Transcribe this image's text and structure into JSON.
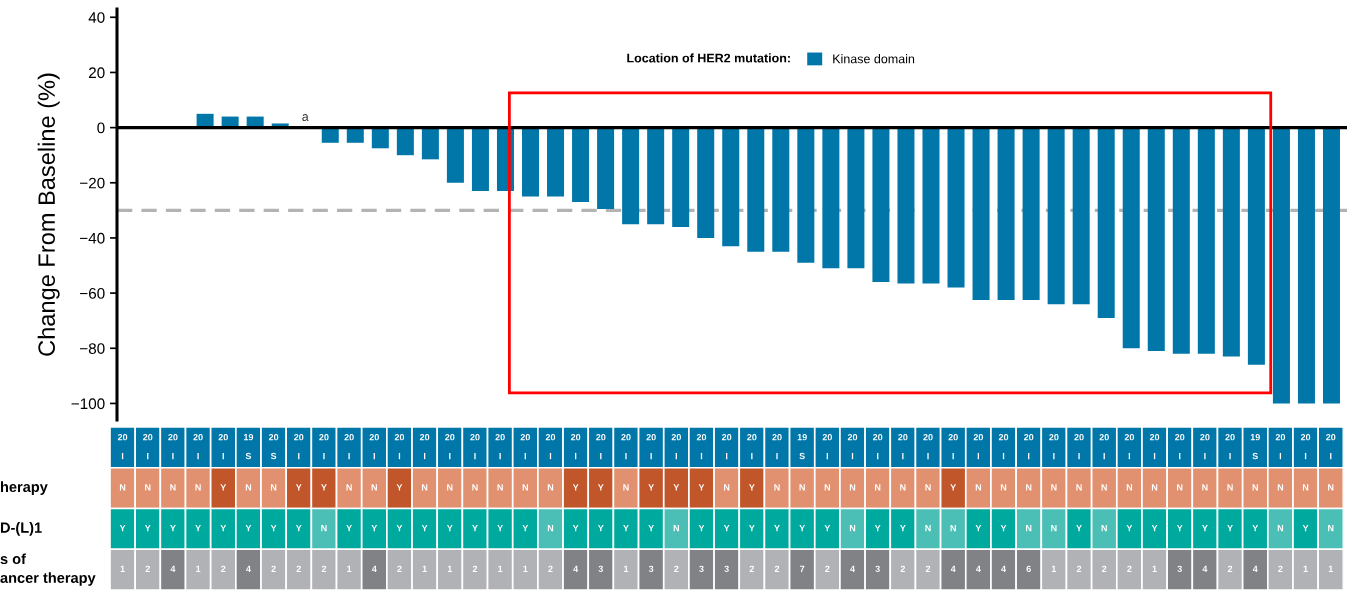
{
  "chart_data": [
    {
      "type": "bar",
      "ylabel": "Change From Baseline (%)",
      "legend_title": "Location of HER2 mutation:",
      "legend": "top",
      "categories": [
        null,
        null,
        null,
        null,
        null,
        null,
        null,
        null,
        null,
        null,
        null,
        null,
        null,
        null,
        null,
        null,
        null,
        null,
        null,
        null,
        null,
        null,
        null,
        null,
        null,
        null,
        null,
        null,
        null,
        null,
        null,
        null,
        null,
        null,
        null,
        null,
        null,
        null,
        null,
        null,
        null,
        null,
        null,
        null,
        null,
        null,
        null,
        null,
        null
      ],
      "series": [
        {
          "name": "Kinase domain",
          "color": "#0077a8",
          "values": [
            null,
            null,
            null,
            5,
            4,
            4,
            1.5,
            0,
            -5.5,
            -5.5,
            -7.5,
            -10,
            -11.5,
            -20,
            -23,
            -23,
            -25,
            -25,
            -27,
            -29.5,
            -35,
            -35,
            -36,
            -40,
            -43,
            -45,
            -45,
            -49,
            -51,
            -51,
            -56,
            -56.5,
            -56.5,
            -58,
            -62.5,
            -62.5,
            -62.5,
            -64,
            -64,
            -69,
            -80,
            -81,
            -82,
            -82,
            -83,
            -86,
            -100,
            -100,
            -100
          ],
          "value_labels": [
            null,
            null,
            null,
            null,
            null,
            null,
            null,
            "a",
            null,
            null,
            null,
            null,
            null,
            null,
            null,
            null,
            null,
            null,
            null,
            null,
            null,
            null,
            null,
            null,
            null,
            null,
            null,
            null,
            null,
            null,
            null,
            null,
            null,
            null,
            null,
            null,
            null,
            null,
            null,
            null,
            null,
            null,
            null,
            null,
            null,
            null,
            null,
            null,
            null
          ]
        }
      ],
      "ylim": [
        -106,
        43
      ],
      "yticks": [
        40,
        20,
        0,
        {
          "value": -20,
          "label": "−20"
        },
        {
          "value": -40,
          "label": "−40"
        },
        {
          "value": -60,
          "label": "−60"
        },
        {
          "value": -80,
          "label": "−80"
        },
        {
          "value": -100,
          "label": "−100"
        }
      ],
      "ref_lines": [
        {
          "axis": "y",
          "value": 0,
          "color": "#000000",
          "line_style": "solid"
        },
        {
          "axis": "y",
          "value": -30,
          "color": "#b3b3b3",
          "line_style": "dashed"
        }
      ],
      "tick_labels": "y",
      "grid": false
    },
    {
      "type": "other",
      "categories": [
        null,
        null,
        null,
        null,
        null,
        null,
        null,
        null,
        null,
        null,
        null,
        null,
        null,
        null,
        null,
        null,
        null,
        null,
        null,
        null,
        null,
        null,
        null,
        null,
        null,
        null,
        null,
        null,
        null,
        null,
        null,
        null,
        null,
        null,
        null,
        null,
        null,
        null,
        null,
        null,
        null,
        null,
        null,
        null,
        null,
        null,
        null,
        null,
        null
      ],
      "y_categories": [
        null,
        "herapy",
        "D-(L)1",
        "s of\nancer therapy"
      ],
      "cell_labels": [
        [
          "20\nI",
          "20\nI",
          "20\nI",
          "20\nI",
          "20\nI",
          "19\nS",
          "20\nS",
          "20\nI",
          "20\nI",
          "20\nI",
          "20\nI",
          "20\nI",
          "20\nI",
          "20\nI",
          "20\nI",
          "20\nI",
          "20\nI",
          "20\nI",
          "20\nI",
          "20\nI",
          "20\nI",
          "20\nI",
          "20\nI",
          "20\nI",
          "20\nI",
          "20\nI",
          "20\nI",
          "19\nS",
          "20\nI",
          "20\nI",
          "20\nI",
          "20\nI",
          "20\nI",
          "20\nI",
          "20\nI",
          "20\nI",
          "20\nI",
          "20\nI",
          "20\nI",
          "20\nI",
          "20\nI",
          "20\nI",
          "20\nI",
          "20\nI",
          "20\nI",
          "19\nS",
          "20\nI",
          "20\nI",
          "20\nI"
        ],
        [
          "N",
          "N",
          "N",
          "N",
          "Y",
          "N",
          "N",
          "Y",
          "Y",
          "N",
          "N",
          "Y",
          "N",
          "N",
          "N",
          "N",
          "N",
          "N",
          "Y",
          "Y",
          "N",
          "Y",
          "Y",
          "Y",
          "N",
          "Y",
          "N",
          "N",
          "N",
          "N",
          "N",
          "N",
          "N",
          "Y",
          "N",
          "N",
          "N",
          "N",
          "N",
          "N",
          "N",
          "N",
          "N",
          "N",
          "N",
          "N",
          "N",
          "N",
          "N"
        ],
        [
          "Y",
          "Y",
          "Y",
          "Y",
          "Y",
          "Y",
          "Y",
          "Y",
          "N",
          "Y",
          "Y",
          "Y",
          "Y",
          "Y",
          "Y",
          "Y",
          "Y",
          "N",
          "Y",
          "Y",
          "Y",
          "Y",
          "N",
          "Y",
          "Y",
          "Y",
          "Y",
          "Y",
          "Y",
          "N",
          "Y",
          "Y",
          "N",
          "N",
          "Y",
          "Y",
          "N",
          "N",
          "Y",
          "N",
          "Y",
          "Y",
          "Y",
          "Y",
          "Y",
          "Y",
          "N",
          "Y",
          "N"
        ],
        [
          "1",
          "2",
          "4",
          "1",
          "2",
          "4",
          "2",
          "2",
          "2",
          "1",
          "4",
          "2",
          "1",
          "1",
          "2",
          "1",
          "1",
          "2",
          "4",
          "3",
          "1",
          "3",
          "2",
          "3",
          "3",
          "2",
          "2",
          "7",
          "2",
          "4",
          "3",
          "2",
          "2",
          "4",
          "4",
          "4",
          "6",
          "1",
          "2",
          "2",
          "2",
          "1",
          "3",
          "4",
          "2",
          "4",
          "2",
          "1",
          "1"
        ]
      ],
      "colors": [
        [
          "#0077a8",
          "#0077a8",
          "#0077a8",
          "#0077a8",
          "#0077a8",
          "#0077a8",
          "#0077a8",
          "#0077a8",
          "#0077a8",
          "#0077a8",
          "#0077a8",
          "#0077a8",
          "#0077a8",
          "#0077a8",
          "#0077a8",
          "#0077a8",
          "#0077a8",
          "#0077a8",
          "#0077a8",
          "#0077a8",
          "#0077a8",
          "#0077a8",
          "#0077a8",
          "#0077a8",
          "#0077a8",
          "#0077a8",
          "#0077a8",
          "#0077a8",
          "#0077a8",
          "#0077a8",
          "#0077a8",
          "#0077a8",
          "#0077a8",
          "#0077a8",
          "#0077a8",
          "#0077a8",
          "#0077a8",
          "#0077a8",
          "#0077a8",
          "#0077a8",
          "#0077a8",
          "#0077a8",
          "#0077a8",
          "#0077a8",
          "#0077a8",
          "#0077a8",
          "#0077a8",
          "#0077a8",
          "#0077a8"
        ],
        [
          "#e1916f",
          "#e1916f",
          "#e1916f",
          "#e1916f",
          "#c0562a",
          "#e1916f",
          "#e1916f",
          "#c0562a",
          "#c0562a",
          "#e1916f",
          "#e1916f",
          "#c0562a",
          "#e1916f",
          "#e1916f",
          "#e1916f",
          "#e1916f",
          "#e1916f",
          "#e1916f",
          "#c0562a",
          "#c0562a",
          "#e1916f",
          "#c0562a",
          "#c0562a",
          "#c0562a",
          "#e1916f",
          "#c0562a",
          "#e1916f",
          "#e1916f",
          "#e1916f",
          "#e1916f",
          "#e1916f",
          "#e1916f",
          "#e1916f",
          "#c0562a",
          "#e1916f",
          "#e1916f",
          "#e1916f",
          "#e1916f",
          "#e1916f",
          "#e1916f",
          "#e1916f",
          "#e1916f",
          "#e1916f",
          "#e1916f",
          "#e1916f",
          "#e1916f",
          "#e1916f",
          "#e1916f",
          "#e1916f"
        ],
        [
          "#00a99d",
          "#00a99d",
          "#00a99d",
          "#00a99d",
          "#00a99d",
          "#00a99d",
          "#00a99d",
          "#00a99d",
          "#4bbfb5",
          "#00a99d",
          "#00a99d",
          "#00a99d",
          "#00a99d",
          "#00a99d",
          "#00a99d",
          "#00a99d",
          "#00a99d",
          "#4bbfb5",
          "#00a99d",
          "#00a99d",
          "#00a99d",
          "#00a99d",
          "#4bbfb5",
          "#00a99d",
          "#00a99d",
          "#00a99d",
          "#00a99d",
          "#00a99d",
          "#00a99d",
          "#4bbfb5",
          "#00a99d",
          "#00a99d",
          "#4bbfb5",
          "#4bbfb5",
          "#00a99d",
          "#00a99d",
          "#4bbfb5",
          "#4bbfb5",
          "#00a99d",
          "#4bbfb5",
          "#00a99d",
          "#00a99d",
          "#00a99d",
          "#00a99d",
          "#00a99d",
          "#00a99d",
          "#4bbfb5",
          "#00a99d",
          "#4bbfb5"
        ],
        [
          "#b1b2b6",
          "#b1b2b6",
          "#808285",
          "#b1b2b6",
          "#b1b2b6",
          "#808285",
          "#b1b2b6",
          "#b1b2b6",
          "#b1b2b6",
          "#b1b2b6",
          "#808285",
          "#b1b2b6",
          "#b1b2b6",
          "#b1b2b6",
          "#b1b2b6",
          "#b1b2b6",
          "#b1b2b6",
          "#b1b2b6",
          "#808285",
          "#808285",
          "#b1b2b6",
          "#808285",
          "#b1b2b6",
          "#808285",
          "#808285",
          "#b1b2b6",
          "#b1b2b6",
          "#808285",
          "#b1b2b6",
          "#808285",
          "#808285",
          "#b1b2b6",
          "#b1b2b6",
          "#808285",
          "#808285",
          "#808285",
          "#808285",
          "#b1b2b6",
          "#b1b2b6",
          "#b1b2b6",
          "#b1b2b6",
          "#b1b2b6",
          "#808285",
          "#808285",
          "#b1b2b6",
          "#808285",
          "#b1b2b6",
          "#b1b2b6",
          "#b1b2b6"
        ]
      ]
    }
  ]
}
